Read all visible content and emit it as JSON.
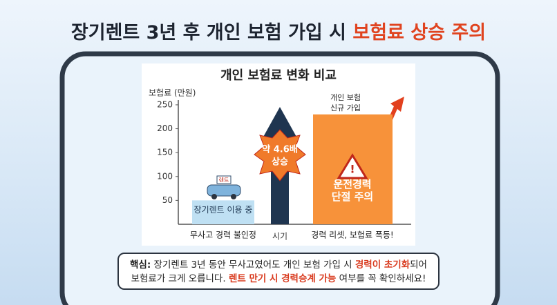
{
  "header": {
    "title": [
      "장기렌트 3년 후 개인 보험 가입 시 ",
      "보험료 상승 주의"
    ]
  },
  "chart_data": {
    "type": "bar",
    "title": "개인 보험료 변화 비교",
    "y_label": "보험료 (만원)",
    "x_label": "시기",
    "categories": [
      "무사고 경력 불인정",
      "경력 리셋, 보험료 폭등!"
    ],
    "values": [
      50,
      230
    ],
    "bar_labels": [
      [
        "장기렌트 이용 중"
      ],
      [
        "운전경력",
        "단절 주의"
      ]
    ],
    "colors": [
      "#bfe0f3",
      "#f7923a"
    ],
    "ylim": [
      0,
      260
    ],
    "yticks": [
      50,
      100,
      150,
      200,
      250
    ],
    "annotations": {
      "increase": [
        "약 4.6배",
        "상승"
      ],
      "new_policy": [
        "개인 보험",
        "신규 가입"
      ],
      "car_badge": "렌트"
    }
  },
  "note": {
    "line1": [
      "핵심:",
      " 장기렌트 3년 동안 무사고였어도 개인 보험 가입 시 ",
      "경력이 초기화",
      "되어"
    ],
    "line2": [
      "보험료가 크게 오릅니다. ",
      "렌트 만기 시 경력승계 가능",
      " 여부를 꼭 확인하세요!"
    ]
  }
}
